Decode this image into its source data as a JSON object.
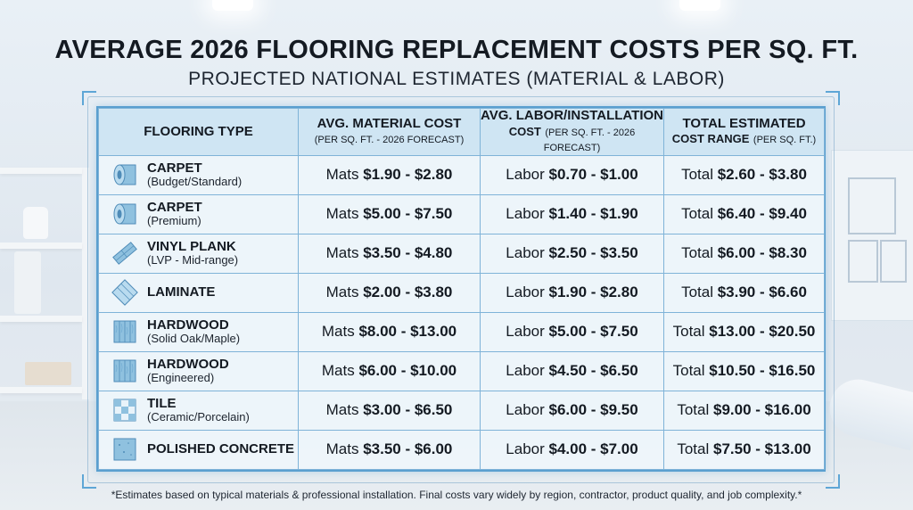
{
  "header": {
    "title": "AVERAGE 2026 FLOORING REPLACEMENT COSTS PER SQ. FT.",
    "subtitle": "PROJECTED NATIONAL ESTIMATES (MATERIAL & LABOR)"
  },
  "table": {
    "columns": [
      {
        "title": "FLOORING TYPE",
        "subtitle": ""
      },
      {
        "title": "AVG. MATERIAL COST",
        "subtitle": "(PER SQ. FT. - 2026 FORECAST)"
      },
      {
        "title": "AVG. LABOR/INSTALLATION",
        "subtitle_emph": "COST",
        "subtitle": "(PER SQ. FT. - 2026 FORECAST)"
      },
      {
        "title": "TOTAL ESTIMATED",
        "subtitle_emph": "COST RANGE",
        "subtitle": "(PER SQ. FT.)"
      }
    ],
    "prefixes": {
      "material": "Mats",
      "labor": "Labor",
      "total": "Total"
    },
    "rows": [
      {
        "name": "CARPET",
        "sub": "(Budget/Standard)",
        "icon": "carpet-roll-icon",
        "material": "$1.90 - $2.80",
        "labor": "$0.70 - $1.00",
        "total": "$2.60 - $3.80"
      },
      {
        "name": "CARPET",
        "sub": "(Premium)",
        "icon": "carpet-roll-icon",
        "material": "$5.00 - $7.50",
        "labor": "$1.40 - $1.90",
        "total": "$6.40 - $9.40"
      },
      {
        "name": "VINYL PLANK",
        "sub": "(LVP - Mid-range)",
        "icon": "vinyl-plank-icon",
        "material": "$3.50 - $4.80",
        "labor": "$2.50 - $3.50",
        "total": "$6.00 - $8.30"
      },
      {
        "name": "LAMINATE",
        "sub": "",
        "icon": "laminate-icon",
        "material": "$2.00 - $3.80",
        "labor": "$1.90 - $2.80",
        "total": "$3.90 - $6.60"
      },
      {
        "name": "HARDWOOD",
        "sub": "(Solid Oak/Maple)",
        "icon": "hardwood-icon",
        "material": "$8.00 - $13.00",
        "labor": "$5.00 - $7.50",
        "total": "$13.00 - $20.50"
      },
      {
        "name": "HARDWOOD",
        "sub": "(Engineered)",
        "icon": "hardwood-icon",
        "material": "$6.00 - $10.00",
        "labor": "$4.50 - $6.50",
        "total": "$10.50 - $16.50"
      },
      {
        "name": "TILE",
        "sub": "(Ceramic/Porcelain)",
        "icon": "tile-icon",
        "material": "$3.00 - $6.50",
        "labor": "$6.00 - $9.50",
        "total": "$9.00 - $16.00"
      },
      {
        "name": "POLISHED CONCRETE",
        "sub": "",
        "icon": "concrete-icon",
        "material": "$3.50 - $6.00",
        "labor": "$4.00 - $7.00",
        "total": "$7.50 - $13.00"
      }
    ]
  },
  "footnote": "*Estimates based on typical materials & professional installation. Final costs vary widely by region, contractor, product quality, and job complexity.*",
  "colors": {
    "accent": "#5a9fcf",
    "header_fill": "#cfe5f3",
    "text": "#141a22"
  }
}
